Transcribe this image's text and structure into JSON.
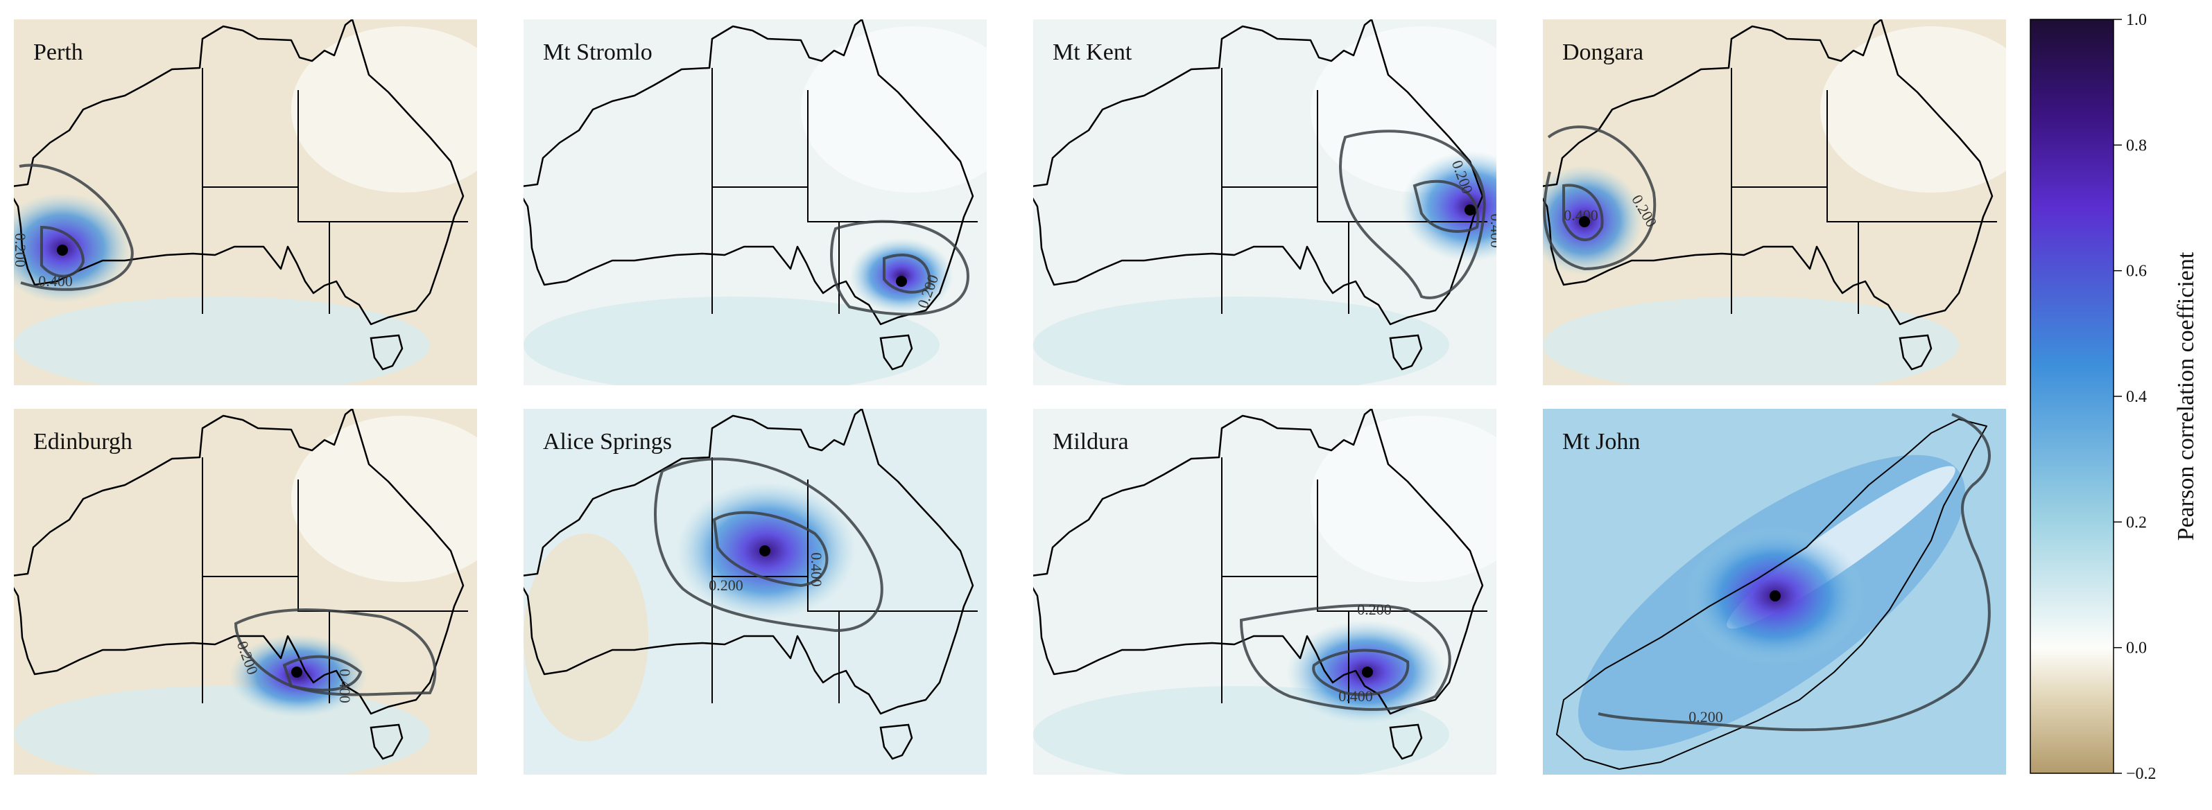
{
  "chart_data": {
    "type": "heatmap",
    "panels": [
      {
        "title": "Perth",
        "region": "Australia",
        "contour_labels": [
          "0.200",
          "0.400"
        ]
      },
      {
        "title": "Mt Stromlo",
        "region": "Australia",
        "contour_labels": [
          "0.200"
        ]
      },
      {
        "title": "Mt Kent",
        "region": "Australia",
        "contour_labels": [
          "0.200",
          "0.400"
        ]
      },
      {
        "title": "Dongara",
        "region": "Australia",
        "contour_labels": [
          "0.200",
          "0.400"
        ]
      },
      {
        "title": "Edinburgh",
        "region": "Australia",
        "contour_labels": [
          "0.200",
          "0.400"
        ]
      },
      {
        "title": "Alice Springs",
        "region": "Australia",
        "contour_labels": [
          "0.200",
          "0.400"
        ]
      },
      {
        "title": "Mildura",
        "region": "Australia",
        "contour_labels": [
          "0.200",
          "0.400"
        ]
      },
      {
        "title": "Mt John",
        "region": "New Zealand South Island",
        "contour_labels": [
          "0.200"
        ]
      }
    ],
    "colorbar": {
      "label": "Pearson correlation coefficient",
      "range": [
        -0.2,
        1.0
      ],
      "ticks": [
        "1.0",
        "0.8",
        "0.6",
        "0.4",
        "0.2",
        "0.0",
        "−0.2"
      ],
      "tick_values": [
        1.0,
        0.8,
        0.6,
        0.4,
        0.2,
        0.0,
        -0.2
      ],
      "colors": [
        "#b39b6b",
        "#e2d6b8",
        "#fdfdfa",
        "#9fd3e3",
        "#3d8fdb",
        "#5b2fd0",
        "#3a1480",
        "#1d0d33"
      ],
      "color_stops": [
        -0.2,
        -0.08,
        0.0,
        0.2,
        0.45,
        0.7,
        0.85,
        1.0
      ]
    },
    "contour_levels": [
      0.2,
      0.4
    ],
    "contour_color": "#3a3f44",
    "marker": "black dot at site location"
  }
}
